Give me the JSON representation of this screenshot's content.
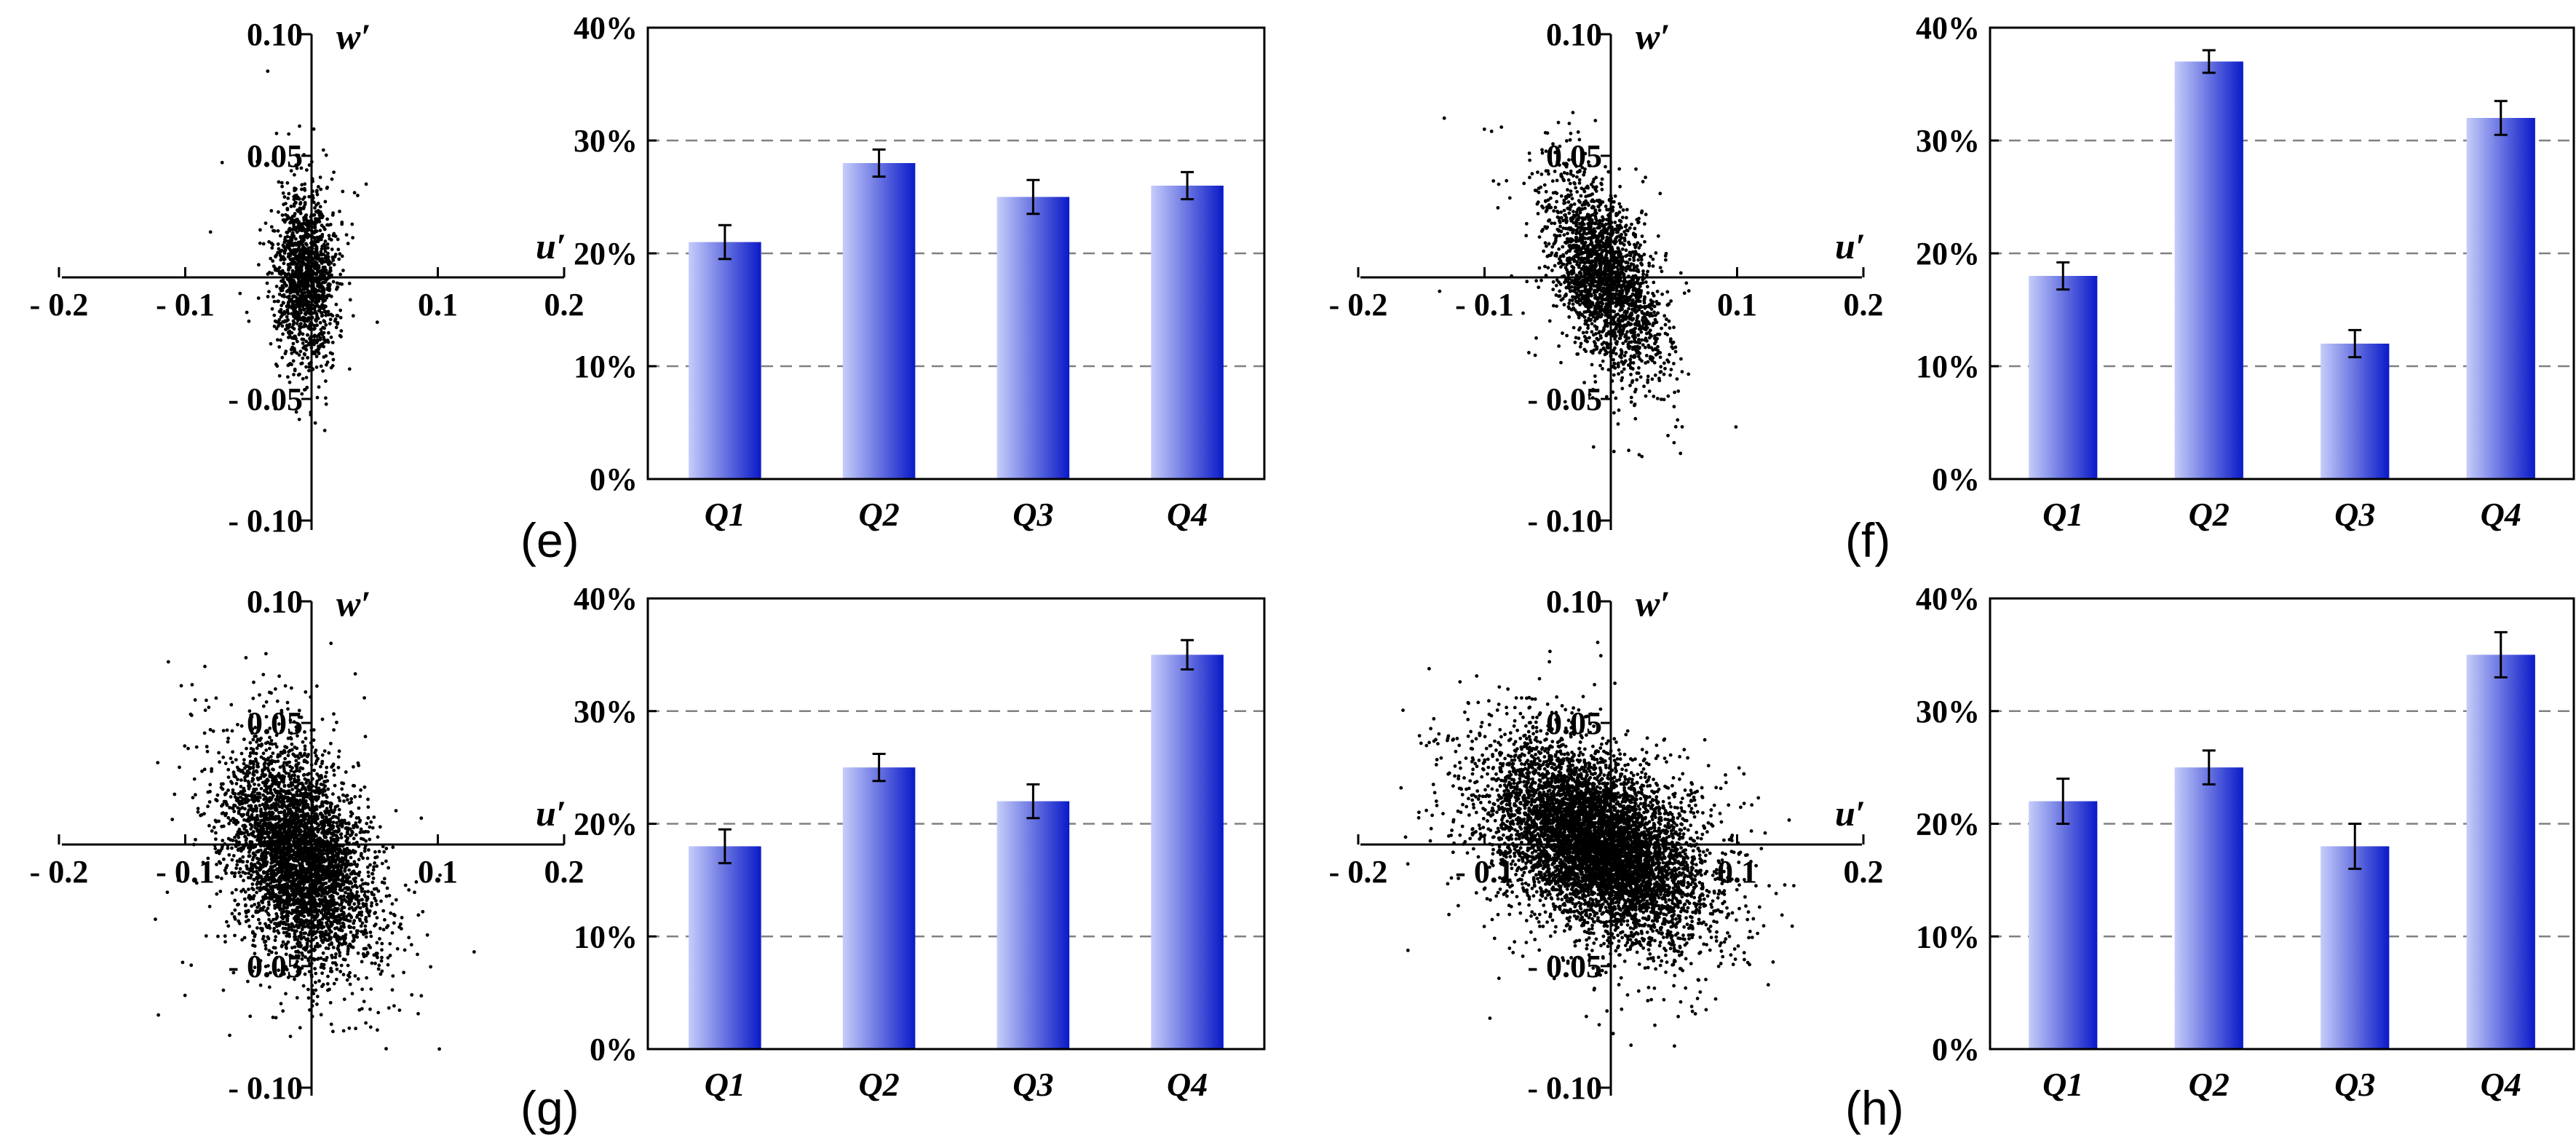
{
  "bar_gradient": {
    "light": "#c6cdfa",
    "dark": "#0a1ac8"
  },
  "chart_data": [
    {
      "panel": "(e)",
      "scatter": {
        "type": "scatter",
        "x_label": "u′",
        "y_label": "w′",
        "xlim": [
          -0.2,
          0.2
        ],
        "ylim": [
          -0.1,
          0.1
        ],
        "x_ticks": [
          -0.2,
          -0.1,
          0.1,
          0.2
        ],
        "x_tick_labels": [
          "- 0.2",
          "- 0.1",
          "0.1",
          "0.2"
        ],
        "y_ticks": [
          0.1,
          0.05,
          -0.05,
          -0.1
        ],
        "y_tick_labels": [
          "0.10",
          "0.05",
          "- 0.05",
          "- 0.10"
        ],
        "cloud": {
          "n": 1400,
          "mean_u": -0.005,
          "mean_w": 0.0,
          "sd_u": 0.012,
          "sd_w": 0.018,
          "corr": 0.0
        }
      },
      "bar": {
        "type": "bar",
        "categories": [
          "Q1",
          "Q2",
          "Q3",
          "Q4"
        ],
        "values": [
          21,
          28,
          25,
          26
        ],
        "errors": [
          1.5,
          1.2,
          1.5,
          1.2
        ],
        "ylim": [
          0,
          40
        ],
        "y_ticks": [
          0,
          10,
          20,
          30,
          40
        ],
        "y_tick_labels": [
          "0%",
          "10%",
          "20%",
          "30%",
          "40%"
        ]
      }
    },
    {
      "panel": "(f)",
      "scatter": {
        "type": "scatter",
        "x_label": "u′",
        "y_label": "w′",
        "xlim": [
          -0.2,
          0.2
        ],
        "ylim": [
          -0.1,
          0.1
        ],
        "x_ticks": [
          -0.2,
          -0.1,
          0.1,
          0.2
        ],
        "x_tick_labels": [
          "- 0.2",
          "- 0.1",
          "0.1",
          "0.2"
        ],
        "y_ticks": [
          0.1,
          0.05,
          -0.05,
          -0.1
        ],
        "y_tick_labels": [
          "0.10",
          "0.05",
          "- 0.05",
          "- 0.10"
        ],
        "cloud": {
          "n": 2200,
          "mean_u": -0.005,
          "mean_w": 0.0,
          "sd_u": 0.022,
          "sd_w": 0.02,
          "corr": -0.55
        }
      },
      "bar": {
        "type": "bar",
        "categories": [
          "Q1",
          "Q2",
          "Q3",
          "Q4"
        ],
        "values": [
          18,
          37,
          12,
          32
        ],
        "errors": [
          1.2,
          1.0,
          1.2,
          1.5
        ],
        "ylim": [
          0,
          40
        ],
        "y_ticks": [
          0,
          10,
          20,
          30,
          40
        ],
        "y_tick_labels": [
          "0%",
          "10%",
          "20%",
          "30%",
          "40%"
        ]
      }
    },
    {
      "panel": "(g)",
      "scatter": {
        "type": "scatter",
        "x_label": "u′",
        "y_label": "w′",
        "xlim": [
          -0.2,
          0.2
        ],
        "ylim": [
          -0.1,
          0.1
        ],
        "x_ticks": [
          -0.2,
          -0.1,
          0.1,
          0.2
        ],
        "x_tick_labels": [
          "- 0.2",
          "- 0.1",
          "0.1",
          "0.2"
        ],
        "y_ticks": [
          0.1,
          0.05,
          -0.05,
          -0.1
        ],
        "y_tick_labels": [
          "0.10",
          "0.05",
          "- 0.05",
          "- 0.10"
        ],
        "cloud": {
          "n": 4200,
          "mean_u": -0.01,
          "mean_w": -0.005,
          "sd_u": 0.028,
          "sd_w": 0.022,
          "corr": -0.35
        }
      },
      "bar": {
        "type": "bar",
        "categories": [
          "Q1",
          "Q2",
          "Q3",
          "Q4"
        ],
        "values": [
          18,
          25,
          22,
          35
        ],
        "errors": [
          1.5,
          1.2,
          1.5,
          1.3
        ],
        "ylim": [
          0,
          40
        ],
        "y_ticks": [
          0,
          10,
          20,
          30,
          40
        ],
        "y_tick_labels": [
          "0%",
          "10%",
          "20%",
          "30%",
          "40%"
        ]
      }
    },
    {
      "panel": "(h)",
      "scatter": {
        "type": "scatter",
        "x_label": "u′",
        "y_label": "w′",
        "xlim": [
          -0.2,
          0.2
        ],
        "ylim": [
          -0.1,
          0.1
        ],
        "x_ticks": [
          -0.2,
          -0.1,
          0.1,
          0.2
        ],
        "x_tick_labels": [
          "- 0.2",
          "- 0.1",
          "0.1",
          "0.2"
        ],
        "y_ticks": [
          0.1,
          0.05,
          -0.05,
          -0.1
        ],
        "y_tick_labels": [
          "0.10",
          "0.05",
          "- 0.05",
          "- 0.10"
        ],
        "cloud": {
          "n": 6500,
          "mean_u": -0.01,
          "mean_w": 0.0,
          "sd_u": 0.042,
          "sd_w": 0.02,
          "corr": -0.45
        }
      },
      "bar": {
        "type": "bar",
        "categories": [
          "Q1",
          "Q2",
          "Q3",
          "Q4"
        ],
        "values": [
          22,
          25,
          18,
          35
        ],
        "errors": [
          2.0,
          1.5,
          2.0,
          2.0
        ],
        "ylim": [
          0,
          40
        ],
        "y_ticks": [
          0,
          10,
          20,
          30,
          40
        ],
        "y_tick_labels": [
          "0%",
          "10%",
          "20%",
          "30%",
          "40%"
        ]
      }
    }
  ]
}
